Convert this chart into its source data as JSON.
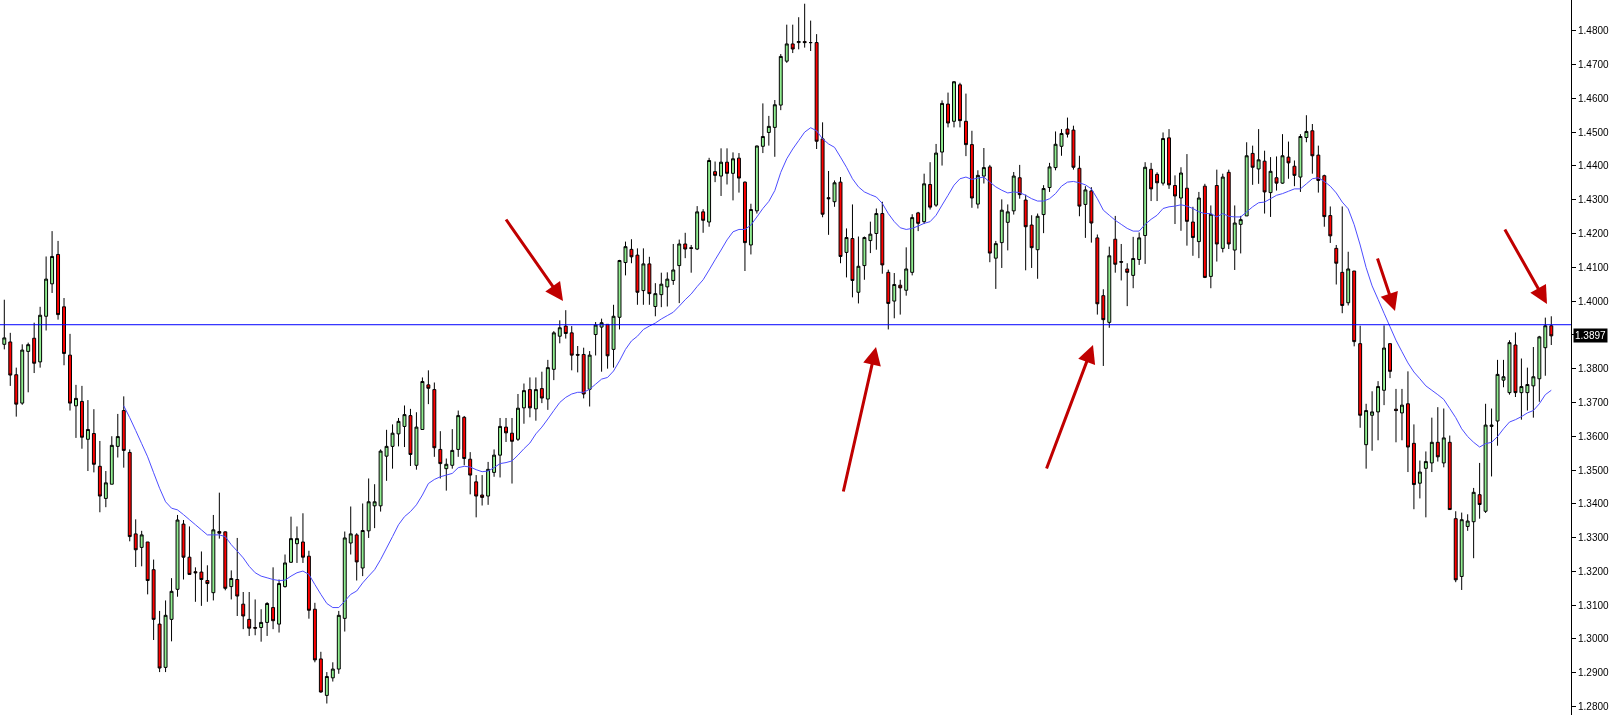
{
  "chart_data": {
    "type": "candlestick",
    "categories": [
      null,
      null,
      null,
      null,
      null,
      null,
      null,
      null,
      null,
      null,
      null,
      null,
      null,
      null,
      null,
      null,
      null,
      null,
      null,
      null,
      null,
      null,
      null,
      null,
      null,
      null,
      null,
      null,
      null,
      null,
      null,
      null,
      null,
      null,
      null,
      null,
      null,
      null,
      null,
      null,
      null,
      null,
      null,
      null,
      null,
      null,
      null,
      null,
      null,
      null,
      null,
      null,
      null,
      null,
      null,
      null,
      null,
      null,
      null,
      null,
      null,
      null,
      null,
      null,
      null,
      null,
      null,
      null,
      null,
      null,
      null,
      null,
      null,
      null,
      null,
      null,
      null,
      null,
      null,
      null,
      null,
      null,
      null,
      null,
      null,
      null,
      null,
      null,
      null,
      null,
      null,
      null,
      null,
      null,
      null,
      null,
      null,
      null,
      null,
      null,
      null,
      null,
      null,
      null,
      null,
      null,
      null,
      null,
      null,
      null,
      null,
      null,
      null,
      null,
      null,
      null,
      null,
      null,
      null,
      null,
      null,
      null,
      null,
      null,
      null,
      null,
      null,
      null,
      null,
      null,
      null,
      null,
      null,
      null,
      null,
      null,
      null,
      null,
      null,
      null,
      null,
      null,
      null,
      null,
      null,
      null,
      null,
      null,
      null,
      null,
      null,
      null,
      null,
      null,
      null,
      null,
      null,
      null,
      null,
      null,
      null,
      null,
      null,
      null,
      null,
      null,
      null,
      null,
      null,
      null,
      null,
      null,
      null,
      null,
      null,
      null,
      null,
      null,
      null,
      null,
      null,
      null,
      null,
      null,
      null,
      null,
      null,
      null,
      null,
      null,
      null,
      null,
      null,
      null,
      null,
      null,
      null,
      null,
      null,
      null,
      null,
      null,
      null,
      null,
      null,
      null,
      null,
      null,
      null,
      null,
      null,
      null,
      null,
      null,
      null,
      null,
      null,
      null,
      null,
      null,
      null,
      null,
      null,
      null,
      null,
      null,
      null,
      null,
      null,
      null,
      null,
      null,
      null,
      null,
      null,
      null,
      null,
      null,
      null,
      null,
      null,
      null,
      null,
      null,
      null,
      null,
      null,
      null,
      null,
      null,
      null,
      null,
      null,
      null,
      null,
      null,
      null,
      null,
      null,
      null
    ],
    "ohlc": [
      [
        1.3872,
        1.4004,
        1.3857,
        1.3891
      ],
      [
        1.3879,
        1.3906,
        1.3749,
        1.3781
      ],
      [
        1.3782,
        1.3803,
        1.3658,
        1.3695
      ],
      [
        1.3698,
        1.3872,
        1.3693,
        1.3855
      ],
      [
        1.3851,
        1.3877,
        1.373,
        1.3871
      ],
      [
        1.389,
        1.3936,
        1.3787,
        1.3816
      ],
      [
        1.382,
        1.3983,
        1.3803,
        1.3958
      ],
      [
        1.3955,
        1.4132,
        1.3913,
        1.4065
      ],
      [
        1.4051,
        1.4207,
        1.4024,
        1.4132
      ],
      [
        1.4138,
        1.4178,
        1.3945,
        1.396
      ],
      [
        1.3983,
        1.4009,
        1.381,
        1.3845
      ],
      [
        1.384,
        1.3903,
        1.3676,
        1.3698
      ],
      [
        1.369,
        1.3752,
        1.3595,
        1.3712
      ],
      [
        1.3703,
        1.3749,
        1.3563,
        1.3597
      ],
      [
        1.3591,
        1.3707,
        1.3497,
        1.362
      ],
      [
        1.3608,
        1.368,
        1.3493,
        1.3517
      ],
      [
        1.3511,
        1.3586,
        1.3375,
        1.3423
      ],
      [
        1.3416,
        1.3497,
        1.339,
        1.3462
      ],
      [
        1.3458,
        1.36,
        1.3458,
        1.3573
      ],
      [
        1.357,
        1.3666,
        1.3537,
        1.3599
      ],
      [
        1.3676,
        1.3718,
        1.3507,
        1.3558
      ],
      [
        1.3552,
        1.3561,
        1.3289,
        1.3303
      ],
      [
        1.3311,
        1.3354,
        1.3213,
        1.3264
      ],
      [
        1.3271,
        1.332,
        1.3215,
        1.3308
      ],
      [
        1.3287,
        1.3287,
        1.3132,
        1.3173
      ],
      [
        1.3205,
        1.3235,
        1.2997,
        1.3058
      ],
      [
        1.3044,
        1.3083,
        1.2902,
        1.2914
      ],
      [
        1.2916,
        1.3114,
        1.2902,
        1.307
      ],
      [
        1.3058,
        1.318,
        1.2993,
        1.3141
      ],
      [
        1.3147,
        1.3367,
        1.3125,
        1.3352
      ],
      [
        1.334,
        1.3352,
        1.3176,
        1.3242
      ],
      [
        1.3242,
        1.3333,
        1.3191,
        1.3191
      ],
      [
        1.3199,
        1.3212,
        1.311,
        1.3196
      ],
      [
        1.3198,
        1.3259,
        1.3098,
        1.3176
      ],
      [
        1.3173,
        1.3218,
        1.311,
        1.3164
      ],
      [
        1.3137,
        1.3367,
        1.3114,
        1.3323
      ],
      [
        1.3318,
        1.3433,
        1.3297,
        1.3313
      ],
      [
        1.3317,
        1.3318,
        1.3144,
        1.315
      ],
      [
        1.3155,
        1.3203,
        1.3117,
        1.3179
      ],
      [
        1.3176,
        1.3299,
        1.3068,
        1.3127
      ],
      [
        1.3103,
        1.3139,
        1.3029,
        1.3068
      ],
      [
        1.3058,
        1.3139,
        1.3009,
        1.3032
      ],
      [
        1.3034,
        1.3117,
        1.3011,
        1.3032
      ],
      [
        1.3034,
        1.3088,
        1.2992,
        1.3049
      ],
      [
        1.3049,
        1.3109,
        1.3009,
        1.3105
      ],
      [
        1.3093,
        1.3212,
        1.3029,
        1.3054
      ],
      [
        1.3044,
        1.3176,
        1.3019,
        1.3164
      ],
      [
        1.3155,
        1.325,
        1.3152,
        1.3225
      ],
      [
        1.3227,
        1.3362,
        1.3225,
        1.3297
      ],
      [
        1.3282,
        1.3333,
        1.3225,
        1.3297
      ],
      [
        1.3287,
        1.3372,
        1.3225,
        1.3242
      ],
      [
        1.3245,
        1.3261,
        1.306,
        1.3085
      ],
      [
        1.3088,
        1.3107,
        1.2931,
        1.2938
      ],
      [
        1.2941,
        1.2962,
        1.2841,
        1.2843
      ],
      [
        1.2833,
        1.2902,
        1.2809,
        1.2889
      ],
      [
        1.2885,
        1.2931,
        1.2874,
        1.2911
      ],
      [
        1.2911,
        1.3083,
        1.2897,
        1.307
      ],
      [
        1.3061,
        1.3318,
        1.3022,
        1.3299
      ],
      [
        1.3284,
        1.3392,
        1.325,
        1.3311
      ],
      [
        1.3308,
        1.3313,
        1.3173,
        1.3228
      ],
      [
        1.321,
        1.3401,
        1.3186,
        1.3321
      ],
      [
        1.332,
        1.3475,
        1.3299,
        1.3406
      ],
      [
        1.3394,
        1.3458,
        1.3328,
        1.3406
      ],
      [
        1.3394,
        1.3561,
        1.3377,
        1.3556
      ],
      [
        1.3541,
        1.3619,
        1.3468,
        1.357
      ],
      [
        1.357,
        1.3635,
        1.3504,
        1.3609
      ],
      [
        1.3607,
        1.3654,
        1.357,
        1.3644
      ],
      [
        1.3629,
        1.3691,
        1.3568,
        1.3664
      ],
      [
        1.3661,
        1.3681,
        1.3512,
        1.3546
      ],
      [
        1.3514,
        1.3671,
        1.3501,
        1.3627
      ],
      [
        1.362,
        1.3774,
        1.3619,
        1.3762
      ],
      [
        1.3752,
        1.3795,
        1.3695,
        1.3742
      ],
      [
        1.3738,
        1.3759,
        1.3539,
        1.3566
      ],
      [
        1.3561,
        1.3615,
        1.3475,
        1.3519
      ],
      [
        1.3504,
        1.3534,
        1.3439,
        1.3517
      ],
      [
        1.3514,
        1.3621,
        1.3504,
        1.3558
      ],
      [
        1.3561,
        1.3676,
        1.3539,
        1.3661
      ],
      [
        1.3656,
        1.366,
        1.3514,
        1.3534
      ],
      [
        1.3532,
        1.3553,
        1.3428,
        1.3485
      ],
      [
        1.3465,
        1.3485,
        1.336,
        1.3423
      ],
      [
        1.3426,
        1.3485,
        1.3395,
        1.3419
      ],
      [
        1.3423,
        1.3524,
        1.3397,
        1.3502
      ],
      [
        1.3493,
        1.3561,
        1.348,
        1.3544
      ],
      [
        1.3544,
        1.3654,
        1.3478,
        1.3629
      ],
      [
        1.3627,
        1.3654,
        1.3583,
        1.361
      ],
      [
        1.3609,
        1.3654,
        1.346,
        1.3585
      ],
      [
        1.3591,
        1.3725,
        1.3586,
        1.3683
      ],
      [
        1.3684,
        1.3756,
        1.3637,
        1.3735
      ],
      [
        1.3738,
        1.3774,
        1.3656,
        1.3684
      ],
      [
        1.3681,
        1.3774,
        1.3646,
        1.3738
      ],
      [
        1.3741,
        1.3791,
        1.3698,
        1.3713
      ],
      [
        1.371,
        1.3826,
        1.3678,
        1.3803
      ],
      [
        1.3798,
        1.3911,
        1.3766,
        1.3906
      ],
      [
        1.3896,
        1.3943,
        1.3875,
        1.3921
      ],
      [
        1.3926,
        1.3973,
        1.3889,
        1.3904
      ],
      [
        1.3906,
        1.3926,
        1.3795,
        1.384
      ],
      [
        1.3842,
        1.3867,
        1.3789,
        1.384
      ],
      [
        1.3842,
        1.3862,
        1.3712,
        1.3725
      ],
      [
        1.3739,
        1.3852,
        1.3688,
        1.384
      ],
      [
        1.3901,
        1.3938,
        1.3839,
        1.3929
      ],
      [
        1.3923,
        1.3948,
        1.3791,
        1.3936
      ],
      [
        1.3931,
        1.3931,
        1.38,
        1.3838
      ],
      [
        1.3857,
        1.3989,
        1.3803,
        1.3955
      ],
      [
        1.3952,
        1.4122,
        1.3916,
        1.412
      ],
      [
        1.4114,
        1.4176,
        1.4076,
        1.4161
      ],
      [
        1.4153,
        1.4183,
        1.4112,
        1.4131
      ],
      [
        1.4136,
        1.4156,
        1.3989,
        1.4026
      ],
      [
        1.4031,
        1.4156,
        1.3989,
        1.411
      ],
      [
        1.411,
        1.4131,
        1.3989,
        1.4022
      ],
      [
        1.3984,
        1.4053,
        1.3955,
        1.4022
      ],
      [
        1.4019,
        1.4084,
        1.3982,
        1.405
      ],
      [
        1.4042,
        1.4085,
        1.3984,
        1.4065
      ],
      [
        1.4061,
        1.4169,
        1.4048,
        1.4092
      ],
      [
        1.4105,
        1.4182,
        1.3994,
        1.4169
      ],
      [
        1.4169,
        1.4202,
        1.4127,
        1.4154
      ],
      [
        1.4158,
        1.4166,
        1.4084,
        1.4156
      ],
      [
        1.4154,
        1.4281,
        1.4151,
        1.4264
      ],
      [
        1.4264,
        1.4272,
        1.4202,
        1.4239
      ],
      [
        1.4234,
        1.4424,
        1.422,
        1.4416
      ],
      [
        1.4383,
        1.4413,
        1.4352,
        1.4372
      ],
      [
        1.437,
        1.4452,
        1.4311,
        1.4411
      ],
      [
        1.4411,
        1.4452,
        1.4345,
        1.4378
      ],
      [
        1.4378,
        1.444,
        1.4298,
        1.4421
      ],
      [
        1.4423,
        1.4438,
        1.4321,
        1.4364
      ],
      [
        1.4352,
        1.4354,
        1.4089,
        1.4173
      ],
      [
        1.4166,
        1.4288,
        1.4138,
        1.4271
      ],
      [
        1.4267,
        1.446,
        1.4259,
        1.4459
      ],
      [
        1.4458,
        1.4585,
        1.4438,
        1.4487
      ],
      [
        1.4499,
        1.4548,
        1.446,
        1.4517
      ],
      [
        1.4514,
        1.4595,
        1.4427,
        1.4581
      ],
      [
        1.458,
        1.4731,
        1.4565,
        1.4724
      ],
      [
        1.471,
        1.4818,
        1.4705,
        1.4761
      ],
      [
        1.4761,
        1.4818,
        1.4734,
        1.4746
      ],
      [
        1.4765,
        1.484,
        1.4745,
        1.4768
      ],
      [
        1.4768,
        1.488,
        1.475,
        1.4765
      ],
      [
        1.4765,
        1.483,
        1.474,
        1.4765
      ],
      [
        1.4765,
        1.479,
        1.445,
        1.4473
      ],
      [
        1.448,
        1.4529,
        1.4248,
        1.4257
      ],
      [
        1.4306,
        1.4385,
        1.4196,
        1.4303
      ],
      [
        1.4294,
        1.4357,
        1.4279,
        1.435
      ],
      [
        1.4352,
        1.4367,
        1.4112,
        1.4132
      ],
      [
        1.4144,
        1.4215,
        1.407,
        1.4188
      ],
      [
        1.4185,
        1.4286,
        1.4011,
        1.4061
      ],
      [
        1.4026,
        1.4191,
        1.3993,
        1.4103
      ],
      [
        1.4105,
        1.4191,
        1.4063,
        1.4188
      ],
      [
        1.4179,
        1.4235,
        1.4142,
        1.4198
      ],
      [
        1.42,
        1.4274,
        1.4152,
        1.4259
      ],
      [
        1.4259,
        1.4294,
        1.4081,
        1.4107
      ],
      [
        1.4085,
        1.4093,
        1.3916,
        1.3993
      ],
      [
        1.4,
        1.4083,
        1.3949,
        1.4049
      ],
      [
        1.4047,
        1.4063,
        1.396,
        1.4039
      ],
      [
        1.4032,
        1.4159,
        1.4016,
        1.4095
      ],
      [
        1.4085,
        1.4257,
        1.4076,
        1.4247
      ],
      [
        1.4261,
        1.4264,
        1.4207,
        1.423
      ],
      [
        1.4235,
        1.4377,
        1.4228,
        1.4347
      ],
      [
        1.4345,
        1.4411,
        1.4271,
        1.4278
      ],
      [
        1.4284,
        1.4465,
        1.4279,
        1.4438
      ],
      [
        1.4441,
        1.4594,
        1.4401,
        1.4585
      ],
      [
        1.4583,
        1.4617,
        1.4514,
        1.4527
      ],
      [
        1.4532,
        1.4651,
        1.4514,
        1.4649
      ],
      [
        1.464,
        1.4646,
        1.4514,
        1.4534
      ],
      [
        1.4532,
        1.4614,
        1.4429,
        1.4463
      ],
      [
        1.4463,
        1.4504,
        1.4276,
        1.4305
      ],
      [
        1.4287,
        1.4387,
        1.4274,
        1.4372
      ],
      [
        1.437,
        1.4453,
        1.4348,
        1.4395
      ],
      [
        1.4397,
        1.4403,
        1.4115,
        1.4142
      ],
      [
        1.4127,
        1.4178,
        1.4036,
        1.417
      ],
      [
        1.4173,
        1.4301,
        1.4098,
        1.4269
      ],
      [
        1.4233,
        1.4286,
        1.415,
        1.4264
      ],
      [
        1.4267,
        1.4382,
        1.4256,
        1.437
      ],
      [
        1.4365,
        1.4403,
        1.4303,
        1.4315
      ],
      [
        1.4299,
        1.4315,
        1.4091,
        1.422
      ],
      [
        1.4225,
        1.4254,
        1.4098,
        1.4158
      ],
      [
        1.4152,
        1.4259,
        1.4066,
        1.4251
      ],
      [
        1.4256,
        1.4343,
        1.4201,
        1.4333
      ],
      [
        1.4336,
        1.4409,
        1.4323,
        1.4397
      ],
      [
        1.4395,
        1.4502,
        1.4387,
        1.4464
      ],
      [
        1.4458,
        1.4509,
        1.443,
        1.4496
      ],
      [
        1.4509,
        1.4543,
        1.4484,
        1.4494
      ],
      [
        1.4506,
        1.4519,
        1.4389,
        1.4396
      ],
      [
        1.4393,
        1.443,
        1.4251,
        1.4281
      ],
      [
        1.4286,
        1.434,
        1.4187,
        1.4329
      ],
      [
        1.4326,
        1.4337,
        1.4173,
        1.4231
      ],
      [
        1.4187,
        1.4197,
        1.396,
        1.3992
      ],
      [
        1.4016,
        1.4035,
        1.3808,
        1.3945
      ],
      [
        1.3937,
        1.4161,
        1.3921,
        1.4134
      ],
      [
        1.4183,
        1.4252,
        1.4084,
        1.4109
      ],
      [
        1.4117,
        1.4169,
        1.4061,
        1.4115
      ],
      [
        1.4095,
        1.4112,
        1.3985,
        1.4085
      ],
      [
        1.4076,
        1.419,
        1.4038,
        1.4126
      ],
      [
        1.4123,
        1.4203,
        1.4107,
        1.4187
      ],
      [
        1.4194,
        1.4411,
        1.411,
        1.4396
      ],
      [
        1.439,
        1.4409,
        1.4296,
        1.4332
      ],
      [
        1.4375,
        1.4381,
        1.4296,
        1.435
      ],
      [
        1.4349,
        1.4499,
        1.4342,
        1.4481
      ],
      [
        1.4483,
        1.4509,
        1.4332,
        1.4344
      ],
      [
        1.4342,
        1.4372,
        1.4228,
        1.4311
      ],
      [
        1.4305,
        1.4396,
        1.4208,
        1.4379
      ],
      [
        1.4334,
        1.4435,
        1.4164,
        1.4236
      ],
      [
        1.4234,
        1.4279,
        1.4134,
        1.4188
      ],
      [
        1.4176,
        1.4323,
        1.4127,
        1.4305
      ],
      [
        1.434,
        1.4347,
        1.4068,
        1.407
      ],
      [
        1.4073,
        1.4283,
        1.4038,
        1.4257
      ],
      [
        1.4342,
        1.4389,
        1.4117,
        1.4169
      ],
      [
        1.4156,
        1.4377,
        1.4144,
        1.4367
      ],
      [
        1.4381,
        1.4389,
        1.4154,
        1.4169
      ],
      [
        1.4151,
        1.4283,
        1.4092,
        1.4231
      ],
      [
        1.4227,
        1.4252,
        1.4141,
        1.4241
      ],
      [
        1.4252,
        1.447,
        1.4252,
        1.443
      ],
      [
        1.4437,
        1.446,
        1.4344,
        1.4396
      ],
      [
        1.4391,
        1.4509,
        1.4347,
        1.4418
      ],
      [
        1.4414,
        1.4445,
        1.4259,
        1.4323
      ],
      [
        1.4321,
        1.4426,
        1.4249,
        1.4384
      ],
      [
        1.4365,
        1.4428,
        1.4327,
        1.4349
      ],
      [
        1.4349,
        1.4494,
        1.4347,
        1.443
      ],
      [
        1.4426,
        1.4472,
        1.4362,
        1.4409
      ],
      [
        1.4399,
        1.4416,
        1.434,
        1.4372
      ],
      [
        1.4367,
        1.4494,
        1.4323,
        1.4487
      ],
      [
        1.4484,
        1.455,
        1.447,
        1.4502
      ],
      [
        1.4504,
        1.4524,
        1.4377,
        1.443
      ],
      [
        1.4432,
        1.446,
        1.4321,
        1.4357
      ],
      [
        1.4371,
        1.4374,
        1.422,
        1.425
      ],
      [
        1.4253,
        1.428,
        1.4172,
        1.4193
      ],
      [
        1.4156,
        1.4166,
        1.4049,
        1.4112
      ],
      [
        1.4085,
        1.428,
        1.3964,
        1.3987
      ],
      [
        1.3995,
        1.4146,
        1.3987,
        1.4095
      ],
      [
        1.4089,
        1.4089,
        1.3866,
        1.388
      ],
      [
        1.3874,
        1.3927,
        1.3625,
        1.3662
      ],
      [
        1.3575,
        1.3696,
        1.3504,
        1.3676
      ],
      [
        1.3662,
        1.3733,
        1.3557,
        1.3672
      ],
      [
        1.3672,
        1.3763,
        1.3588,
        1.3747
      ],
      [
        1.3736,
        1.3928,
        1.3692,
        1.3861
      ],
      [
        1.3874,
        1.3874,
        1.3772,
        1.3792
      ],
      [
        1.368,
        1.374,
        1.3582,
        1.3676
      ],
      [
        1.3669,
        1.374,
        1.3588,
        1.3692
      ],
      [
        1.3696,
        1.3792,
        1.3494,
        1.3568
      ],
      [
        1.3579,
        1.3635,
        1.3384,
        1.3457
      ],
      [
        1.3461,
        1.3528,
        1.3416,
        1.3494
      ],
      [
        1.3505,
        1.3555,
        1.336,
        1.3525
      ],
      [
        1.3521,
        1.3655,
        1.3494,
        1.3582
      ],
      [
        1.3582,
        1.3686,
        1.3525,
        1.3539
      ],
      [
        1.3521,
        1.3682,
        1.3508,
        1.3595
      ],
      [
        1.3582,
        1.3602,
        1.3383,
        1.3383
      ],
      [
        1.3356,
        1.3378,
        1.3168,
        1.3175
      ],
      [
        1.3185,
        1.3374,
        1.3145,
        1.3353
      ],
      [
        1.3333,
        1.3369,
        1.332,
        1.3349
      ],
      [
        1.3347,
        1.3447,
        1.3239,
        1.3434
      ],
      [
        1.3427,
        1.3521,
        1.3356,
        1.3398
      ],
      [
        1.3378,
        1.3696,
        1.3373,
        1.3633
      ],
      [
        1.3629,
        1.3682,
        1.3481,
        1.3633
      ],
      [
        1.3645,
        1.3826,
        1.3572,
        1.3783
      ],
      [
        1.3766,
        1.3826,
        1.3745,
        1.3776
      ],
      [
        1.3729,
        1.3884,
        1.3723,
        1.3877
      ],
      [
        1.387,
        1.3907,
        1.3716,
        1.3729
      ],
      [
        1.3729,
        1.383,
        1.3649,
        1.3747
      ],
      [
        1.3729,
        1.3803,
        1.3676,
        1.3753
      ],
      [
        1.3749,
        1.3864,
        1.3655,
        1.3776
      ],
      [
        1.377,
        1.3897,
        1.3702,
        1.3894
      ],
      [
        1.3862,
        1.3951,
        1.3779,
        1.3927
      ],
      [
        1.3927,
        1.3955,
        1.387,
        1.3897
      ]
    ],
    "series": [
      {
        "type": "line",
        "color": "#4d4dff",
        "values": [
          null,
          null,
          null,
          null,
          null,
          null,
          null,
          null,
          null,
          null,
          null,
          null,
          null,
          null,
          null,
          null,
          null,
          null,
          null,
          null,
          1.369,
          1.3655,
          1.3617,
          1.3578,
          1.3539,
          1.3492,
          1.3446,
          1.3406,
          1.3387,
          1.3382,
          1.3368,
          1.3353,
          1.3338,
          1.3323,
          1.3308,
          1.3308,
          1.3308,
          1.3303,
          1.3279,
          1.326,
          1.324,
          1.3215,
          1.3196,
          1.3186,
          1.3181,
          1.3176,
          1.3173,
          1.3174,
          1.3186,
          1.3196,
          1.3201,
          1.3191,
          1.3161,
          1.3132,
          1.3105,
          1.3093,
          1.3093,
          1.3112,
          1.3132,
          1.3142,
          1.3166,
          1.3186,
          1.3205,
          1.3235,
          1.3269,
          1.3303,
          1.3338,
          1.3362,
          1.3377,
          1.3397,
          1.3426,
          1.346,
          1.3472,
          1.348,
          1.3485,
          1.349,
          1.3507,
          1.3511,
          1.3509,
          1.3501,
          1.3495,
          1.3497,
          1.3507,
          1.3519,
          1.3522,
          1.3527,
          1.3544,
          1.3563,
          1.358,
          1.3607,
          1.3627,
          1.3651,
          1.3676,
          1.37,
          1.3715,
          1.3725,
          1.373,
          1.373,
          1.3739,
          1.3754,
          1.3769,
          1.3774,
          1.3793,
          1.3823,
          1.3857,
          1.3882,
          1.3896,
          1.3916,
          1.3926,
          1.3935,
          1.3947,
          1.3957,
          1.3967,
          1.3985,
          1.4004,
          1.4021,
          1.4043,
          1.4063,
          1.4092,
          1.4122,
          1.4151,
          1.4181,
          1.4205,
          1.4212,
          1.4212,
          1.4225,
          1.4249,
          1.4274,
          1.4295,
          1.4327,
          1.4381,
          1.4421,
          1.445,
          1.4475,
          1.45,
          1.4513,
          1.4504,
          1.448,
          1.4465,
          1.4455,
          1.4426,
          1.4396,
          1.4362,
          1.4338,
          1.4323,
          1.4315,
          1.4308,
          1.4289,
          1.4259,
          1.4235,
          1.4217,
          1.4212,
          1.4215,
          1.4222,
          1.423,
          1.4235,
          1.4254,
          1.4284,
          1.4313,
          1.4343,
          1.4362,
          1.4367,
          1.436,
          1.4364,
          1.4367,
          1.4352,
          1.4338,
          1.4328,
          1.432,
          1.4323,
          1.4321,
          1.4313,
          1.4303,
          1.4296,
          1.4296,
          1.4303,
          1.4318,
          1.434,
          1.4352,
          1.4354,
          1.435,
          1.4344,
          1.4332,
          1.4303,
          1.4269,
          1.4254,
          1.4239,
          1.4227,
          1.4215,
          1.4207,
          1.4207,
          1.4227,
          1.4242,
          1.4254,
          1.4274,
          1.4279,
          1.4281,
          1.4285,
          1.4281,
          1.4274,
          1.4264,
          1.4259,
          1.4259,
          1.4249,
          1.4259,
          1.4251,
          1.4249,
          1.4249,
          1.4264,
          1.4279,
          1.4291,
          1.4293,
          1.4303,
          1.4313,
          1.4318,
          1.4325,
          1.4332,
          1.4332,
          1.4347,
          1.4362,
          1.4365,
          1.4354,
          1.434,
          1.432,
          1.4293,
          1.4273,
          1.4226,
          1.4166,
          1.4099,
          1.4045,
          1.4005,
          1.3964,
          1.3924,
          1.3884,
          1.385,
          1.3817,
          1.379,
          1.377,
          1.3749,
          1.3736,
          1.3723,
          1.3709,
          1.3682,
          1.3655,
          1.3622,
          1.3599,
          1.3582,
          1.3568,
          1.3578,
          1.3582,
          1.3599,
          1.3622,
          1.3642,
          1.3649,
          1.3658,
          1.3669,
          1.3676,
          1.3696,
          1.3723,
          1.3736
        ]
      }
    ],
    "ylim": [
      1.2775,
      1.4891
    ],
    "yticks": [
      {
        "value": 1.28,
        "label": "1.2800"
      },
      {
        "value": 1.29,
        "label": "1.2900"
      },
      {
        "value": 1.3,
        "label": "1.3000"
      },
      {
        "value": 1.31,
        "label": "1.3100"
      },
      {
        "value": 1.32,
        "label": "1.3200"
      },
      {
        "value": 1.33,
        "label": "1.3300"
      },
      {
        "value": 1.34,
        "label": "1.3400"
      },
      {
        "value": 1.35,
        "label": "1.3500"
      },
      {
        "value": 1.36,
        "label": "1.3600"
      },
      {
        "value": 1.37,
        "label": "1.3700"
      },
      {
        "value": 1.38,
        "label": "1.3800"
      },
      {
        "value": 1.39,
        "label": null
      },
      {
        "value": 1.4,
        "label": "1.4000"
      },
      {
        "value": 1.41,
        "label": "1.4100"
      },
      {
        "value": 1.42,
        "label": "1.4200"
      },
      {
        "value": 1.43,
        "label": "1.4300"
      },
      {
        "value": 1.44,
        "label": "1.4400"
      },
      {
        "value": 1.45,
        "label": "1.4500"
      },
      {
        "value": 1.46,
        "label": "1.4600"
      },
      {
        "value": 1.47,
        "label": "1.4700"
      },
      {
        "value": 1.48,
        "label": "1.4800"
      }
    ],
    "ref_lines": [
      {
        "axis": "y",
        "value": 1.393,
        "color": "#0000ff"
      }
    ],
    "annotations": [
      "1.3897"
    ],
    "tick_labels": "y"
  }
}
